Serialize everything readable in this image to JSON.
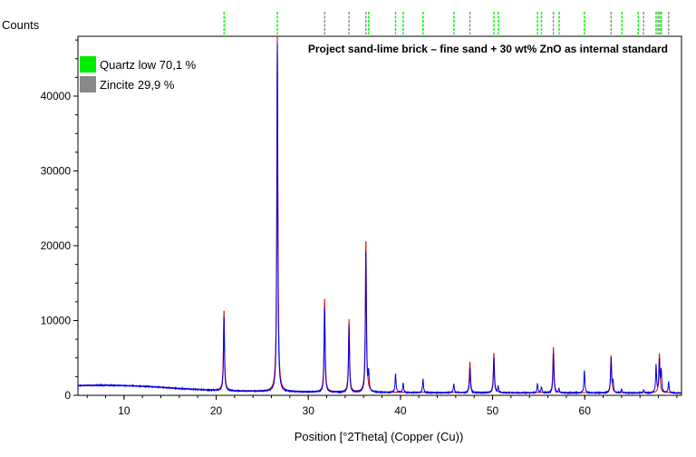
{
  "chart_data": {
    "type": "line",
    "ylabel": "Counts",
    "xlabel": "Position [°2Theta] (Copper (Cu))",
    "annotation": "Project sand-lime brick – fine sand + 30 wt% ZnO as internal standard",
    "xlim": [
      5,
      70.5
    ],
    "ylim": [
      0,
      48000
    ],
    "x_ticks": [
      10,
      20,
      30,
      40,
      50,
      60
    ],
    "y_ticks": [
      0,
      10000,
      20000,
      30000,
      40000
    ],
    "grid": false,
    "legend_position": "top-left",
    "legend": [
      {
        "label": "Quartz low 70,1 %",
        "color": "#00ee00"
      },
      {
        "label": "Zincite 29,9 %",
        "color": "#888888"
      }
    ],
    "series": [
      {
        "color": "#0000ee",
        "background": [
          [
            5,
            1300
          ],
          [
            8,
            1350
          ],
          [
            10,
            1300
          ],
          [
            13,
            1150
          ],
          [
            16,
            900
          ],
          [
            19,
            700
          ],
          [
            22,
            580
          ],
          [
            26,
            500
          ],
          [
            30,
            440
          ],
          [
            35,
            400
          ],
          [
            40,
            370
          ],
          [
            45,
            350
          ],
          [
            50,
            340
          ],
          [
            55,
            330
          ],
          [
            60,
            320
          ],
          [
            65,
            320
          ],
          [
            70.5,
            300
          ]
        ],
        "peaks": [
          [
            20.85,
            10000
          ],
          [
            26.64,
            46500
          ],
          [
            31.77,
            11500
          ],
          [
            34.42,
            9000
          ],
          [
            36.25,
            19000
          ],
          [
            36.55,
            2500
          ],
          [
            39.47,
            2500
          ],
          [
            40.29,
            1300
          ],
          [
            42.45,
            1800
          ],
          [
            45.79,
            1200
          ],
          [
            47.54,
            3300
          ],
          [
            50.14,
            4700
          ],
          [
            50.6,
            900
          ],
          [
            54.87,
            1200
          ],
          [
            55.3,
            800
          ],
          [
            56.6,
            5200
          ],
          [
            57.2,
            600
          ],
          [
            59.96,
            3000
          ],
          [
            62.86,
            4600
          ],
          [
            63.07,
            1500
          ],
          [
            64.0,
            500
          ],
          [
            66.4,
            400
          ],
          [
            67.74,
            3700
          ],
          [
            68.1,
            4300
          ],
          [
            68.3,
            3000
          ],
          [
            69.1,
            1500
          ]
        ]
      },
      {
        "color": "#ee0000",
        "peaks": [
          [
            20.85,
            10800
          ],
          [
            26.64,
            47800
          ],
          [
            31.77,
            12600
          ],
          [
            34.42,
            9700
          ],
          [
            36.25,
            20500
          ],
          [
            47.54,
            4100
          ],
          [
            50.14,
            5300
          ],
          [
            56.6,
            6100
          ],
          [
            62.86,
            5000
          ],
          [
            68.1,
            5300
          ]
        ]
      }
    ],
    "reference_lines": {
      "quartz": {
        "color": "#00ee00",
        "positions": [
          20.86,
          26.64,
          36.54,
          39.47,
          40.3,
          42.45,
          45.8,
          50.14,
          50.62,
          54.87,
          55.3,
          57.23,
          59.96,
          64.04,
          65.8,
          67.74,
          68.14,
          68.31
        ]
      },
      "zincite": {
        "color": "#888888",
        "positions": [
          31.77,
          34.42,
          36.25,
          47.54,
          56.6,
          62.86,
          66.38,
          67.96,
          69.1
        ]
      }
    }
  }
}
